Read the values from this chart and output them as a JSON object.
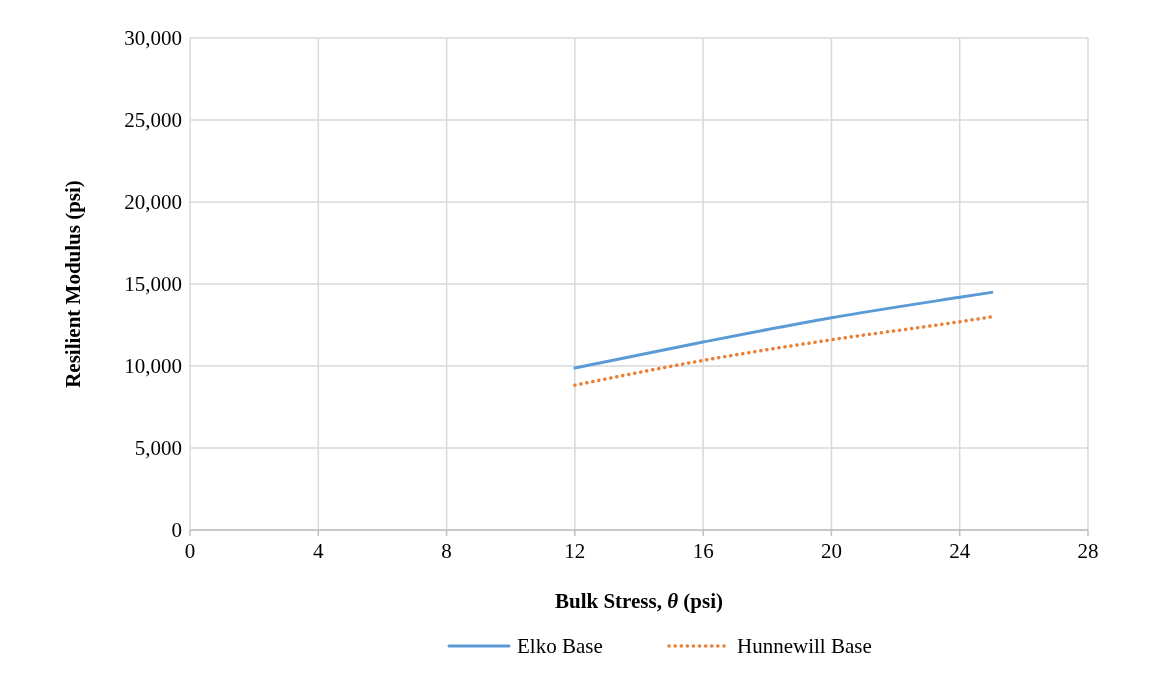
{
  "chart_data": {
    "type": "line",
    "xlabel": "Bulk Stress, θ (psi)",
    "ylabel": "Resilient Modulus (psi)",
    "xlim": [
      0,
      28
    ],
    "xticks": [
      0,
      4,
      8,
      12,
      16,
      20,
      24,
      28
    ],
    "ylim": [
      0,
      30000
    ],
    "yticks": [
      {
        "value": 0,
        "label": "0"
      },
      {
        "value": 5000,
        "label": "5,000"
      },
      {
        "value": 10000,
        "label": "10,000"
      },
      {
        "value": 15000,
        "label": "15,000"
      },
      {
        "value": 20000,
        "label": "20,000"
      },
      {
        "value": 25000,
        "label": "25,000"
      },
      {
        "value": 30000,
        "label": "30,000"
      }
    ],
    "grid": true,
    "legend": "bottom",
    "series": [
      {
        "name": "Elko Base",
        "color": "#5b9bd5",
        "line_style": "solid",
        "x": [
          12,
          16,
          20,
          24,
          25
        ],
        "values": [
          9880,
          11460,
          12940,
          14190,
          14490
        ]
      },
      {
        "name": "Hunnewill Base",
        "color": "#ed7d31",
        "line_style": "dotted",
        "x": [
          12,
          16,
          20,
          24,
          25
        ],
        "values": [
          8830,
          10340,
          11600,
          12700,
          13000
        ]
      }
    ]
  }
}
